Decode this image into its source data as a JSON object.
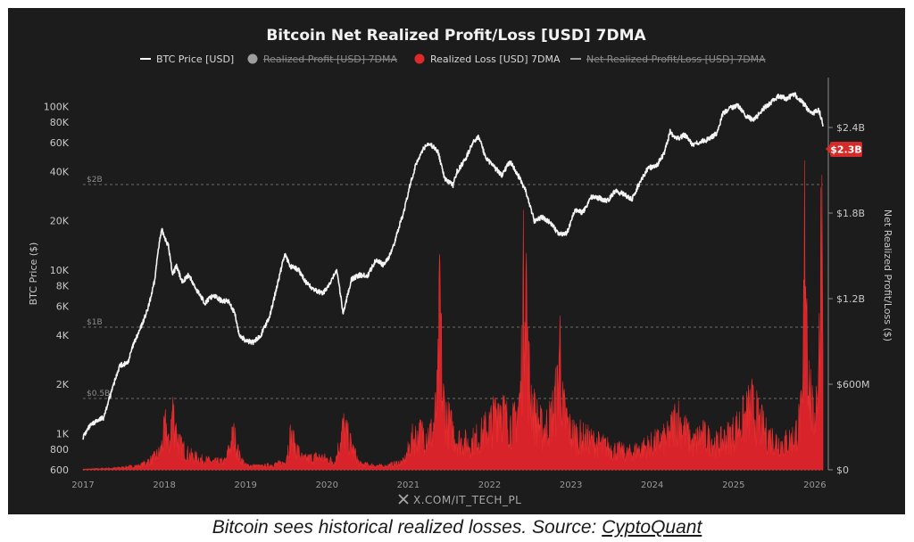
{
  "chart_data": {
    "type": "area",
    "title": "Bitcoin Net Realized Profit/Loss [USD] 7DMA",
    "legend": [
      {
        "label": "BTC Price [USD]",
        "color": "#ffffff",
        "visible": true,
        "symbol": "line"
      },
      {
        "label": "Realized Profit [USD] 7DMA",
        "color": "#9e9e9e",
        "visible": false,
        "symbol": "dot"
      },
      {
        "label": "Realized Loss [USD] 7DMA",
        "color": "#e02a2a",
        "visible": true,
        "symbol": "dot"
      },
      {
        "label": "Net Realized Profit/Loss [USD] 7DMA",
        "color": "#9e9e9e",
        "visible": false,
        "symbol": "line"
      }
    ],
    "legend_position": "top-center",
    "xlabel": "",
    "x_ticks": [
      "2017",
      "2018",
      "2019",
      "2020",
      "2021",
      "2022",
      "2023",
      "2024",
      "2025",
      "2026"
    ],
    "xlim": [
      2017.0,
      2026.1
    ],
    "y_left": {
      "label": "BTC Price ($)",
      "scale": "log",
      "ticks": [
        "100K",
        "80K",
        "60K",
        "40K",
        "20K",
        "10K",
        "8K",
        "6K",
        "4K",
        "2K",
        "1K",
        "800",
        "600"
      ],
      "tick_values": [
        100000,
        80000,
        60000,
        40000,
        20000,
        10000,
        8000,
        6000,
        4000,
        2000,
        1000,
        800,
        600
      ],
      "range": [
        600,
        150000
      ]
    },
    "y_right": {
      "label": "Net Realized Profit/Loss ($)",
      "scale": "linear",
      "ticks": [
        "$2.4B",
        "$1.8B",
        "$1.2B",
        "$600M",
        "$0"
      ],
      "tick_values": [
        2400,
        1800,
        1200,
        600,
        0
      ],
      "unit": "USD millions",
      "range": [
        0,
        2750
      ]
    },
    "reference_lines": [
      {
        "label": "$2B",
        "value": 2000
      },
      {
        "label": "$1B",
        "value": 1000
      },
      {
        "label": "$0.5B",
        "value": 500
      }
    ],
    "current_value_badge": "$2.3B",
    "watermark": "X.COM/IT_TECH_PL",
    "grid": false,
    "series": [
      {
        "name": "BTC Price [USD]",
        "axis": "left",
        "x": [
          2017.0,
          2017.08,
          2017.15,
          2017.25,
          2017.35,
          2017.45,
          2017.55,
          2017.62,
          2017.7,
          2017.8,
          2017.88,
          2017.93,
          2017.97,
          2018.05,
          2018.1,
          2018.15,
          2018.22,
          2018.3,
          2018.4,
          2018.5,
          2018.6,
          2018.7,
          2018.8,
          2018.87,
          2018.92,
          2019.0,
          2019.1,
          2019.2,
          2019.3,
          2019.4,
          2019.48,
          2019.55,
          2019.65,
          2019.75,
          2019.85,
          2019.95,
          2020.05,
          2020.12,
          2020.2,
          2020.3,
          2020.4,
          2020.5,
          2020.6,
          2020.7,
          2020.8,
          2020.88,
          2020.95,
          2021.02,
          2021.1,
          2021.18,
          2021.25,
          2021.3,
          2021.37,
          2021.45,
          2021.55,
          2021.6,
          2021.7,
          2021.8,
          2021.87,
          2021.95,
          2022.05,
          2022.15,
          2022.25,
          2022.35,
          2022.45,
          2022.55,
          2022.65,
          2022.75,
          2022.85,
          2022.95,
          2023.05,
          2023.15,
          2023.25,
          2023.35,
          2023.45,
          2023.55,
          2023.65,
          2023.75,
          2023.85,
          2023.95,
          2024.05,
          2024.15,
          2024.22,
          2024.3,
          2024.4,
          2024.5,
          2024.6,
          2024.7,
          2024.8,
          2024.87,
          2024.95,
          2025.05,
          2025.15,
          2025.25,
          2025.35,
          2025.45,
          2025.55,
          2025.65,
          2025.75,
          2025.82,
          2025.9,
          2025.97,
          2026.05,
          2026.1
        ],
        "values": [
          950,
          1100,
          1180,
          1250,
          1800,
          2600,
          2700,
          3500,
          4300,
          5800,
          8500,
          14000,
          17500,
          14000,
          9500,
          10500,
          8500,
          9300,
          7500,
          6300,
          7000,
          6500,
          6400,
          5300,
          4000,
          3700,
          3600,
          4100,
          5300,
          8500,
          12500,
          10500,
          10000,
          8300,
          7500,
          7200,
          8400,
          10100,
          5400,
          8800,
          9300,
          9200,
          11600,
          10700,
          13000,
          18000,
          23000,
          33000,
          45000,
          55000,
          59000,
          57000,
          52000,
          36000,
          33000,
          40000,
          47000,
          61000,
          65000,
          49000,
          43000,
          38000,
          46000,
          38000,
          30000,
          20000,
          21000,
          19500,
          16500,
          16800,
          23000,
          22500,
          28000,
          27500,
          26500,
          30500,
          29000,
          27000,
          34500,
          42000,
          43000,
          52000,
          70000,
          63000,
          67000,
          58000,
          61000,
          63000,
          69000,
          91000,
          97000,
          102000,
          88000,
          82000,
          95000,
          105000,
          115000,
          112000,
          118000,
          110000,
          98000,
          90000,
          95000,
          78000
        ]
      },
      {
        "name": "Realized Loss [USD] 7DMA",
        "axis": "right",
        "x": [
          2017.0,
          2017.4,
          2017.7,
          2017.85,
          2017.95,
          2018.02,
          2018.06,
          2018.1,
          2018.16,
          2018.2,
          2018.3,
          2018.45,
          2018.6,
          2018.75,
          2018.85,
          2018.88,
          2018.92,
          2019.0,
          2019.2,
          2019.48,
          2019.55,
          2019.7,
          2019.9,
          2020.1,
          2020.2,
          2020.4,
          2020.7,
          2020.95,
          2021.05,
          2021.12,
          2021.3,
          2021.36,
          2021.39,
          2021.42,
          2021.48,
          2021.6,
          2021.75,
          2021.9,
          2022.05,
          2022.12,
          2022.2,
          2022.3,
          2022.38,
          2022.44,
          2022.47,
          2022.5,
          2022.55,
          2022.65,
          2022.75,
          2022.84,
          2022.86,
          2022.9,
          2023.0,
          2023.2,
          2023.5,
          2023.7,
          2024.0,
          2024.2,
          2024.3,
          2024.5,
          2024.6,
          2024.8,
          2025.0,
          2025.15,
          2025.22,
          2025.4,
          2025.6,
          2025.75,
          2025.85,
          2025.88,
          2025.92,
          2025.98,
          2026.03,
          2026.06,
          2026.08,
          2026.1
        ],
        "values": [
          5,
          15,
          35,
          90,
          150,
          380,
          180,
          520,
          280,
          200,
          130,
          90,
          70,
          70,
          300,
          240,
          120,
          40,
          30,
          60,
          280,
          90,
          110,
          70,
          360,
          50,
          30,
          70,
          260,
          300,
          320,
          600,
          1450,
          620,
          420,
          260,
          220,
          300,
          430,
          600,
          420,
          380,
          620,
          2050,
          900,
          700,
          480,
          340,
          420,
          680,
          1150,
          520,
          320,
          260,
          180,
          140,
          220,
          280,
          460,
          220,
          300,
          220,
          320,
          450,
          540,
          300,
          220,
          280,
          500,
          2300,
          850,
          400,
          700,
          1100,
          2300,
          2300
        ]
      }
    ]
  },
  "caption": {
    "text": "Bitcoin sees historical realized losses. Source: ",
    "link": "CyptoQuant"
  }
}
